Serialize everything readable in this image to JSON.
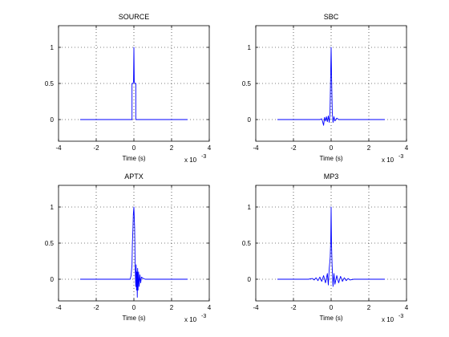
{
  "chart_data": [
    {
      "type": "line",
      "title": "SOURCE",
      "xlabel": "Time (s)",
      "ylabel": "",
      "x_multiplier_label": "x 10",
      "x_multiplier_exponent": "-3",
      "xlim": [
        -4,
        4
      ],
      "ylim": [
        -0.3,
        1.3
      ],
      "xticks": [
        "-4",
        "-2",
        "0",
        "2",
        "4"
      ],
      "yticks": [
        "0",
        "0.5",
        "1"
      ],
      "grid": true,
      "color": "#0000ff",
      "x": [
        -2.85,
        -0.12,
        -0.1,
        -0.1,
        -0.05,
        -0.02,
        0,
        0.02,
        0.05,
        0.1,
        0.1,
        0.12,
        2.85
      ],
      "y": [
        0,
        0,
        0,
        0.5,
        0.5,
        0.52,
        1.0,
        0.52,
        0.5,
        0.5,
        0,
        0,
        0
      ]
    },
    {
      "type": "line",
      "title": "SBC",
      "xlabel": "Time (s)",
      "ylabel": "",
      "x_multiplier_label": "x 10",
      "x_multiplier_exponent": "-3",
      "xlim": [
        -4,
        4
      ],
      "ylim": [
        -0.3,
        1.3
      ],
      "xticks": [
        "-4",
        "-2",
        "0",
        "2",
        "4"
      ],
      "yticks": [
        "0",
        "0.5",
        "1"
      ],
      "grid": true,
      "color": "#0000ff",
      "x": [
        -2.85,
        -0.6,
        -0.5,
        -0.45,
        -0.4,
        -0.35,
        -0.3,
        -0.25,
        -0.2,
        -0.15,
        -0.1,
        -0.06,
        -0.03,
        0,
        0.03,
        0.06,
        0.1,
        0.15,
        0.2,
        0.3,
        0.4,
        2.85
      ],
      "y": [
        0,
        0,
        0.01,
        -0.03,
        -0.08,
        0.03,
        -0.02,
        0.04,
        -0.03,
        0.05,
        -0.04,
        0.1,
        0.55,
        1.0,
        0.5,
        0.1,
        -0.04,
        0.04,
        -0.02,
        0.02,
        0,
        0
      ]
    },
    {
      "type": "line",
      "title": "APTX",
      "xlabel": "Time (s)",
      "ylabel": "",
      "x_multiplier_label": "x 10",
      "x_multiplier_exponent": "-3",
      "xlim": [
        -4,
        4
      ],
      "ylim": [
        -0.3,
        1.3
      ],
      "xticks": [
        "-4",
        "-2",
        "0",
        "2",
        "4"
      ],
      "yticks": [
        "0",
        "0.5",
        "1"
      ],
      "grid": true,
      "color": "#0000ff",
      "x": [
        -2.85,
        -0.2,
        -0.15,
        -0.1,
        -0.08,
        -0.05,
        -0.03,
        0,
        0.02,
        0.04,
        0.06,
        0.08,
        0.1,
        0.12,
        0.14,
        0.16,
        0.18,
        0.2,
        0.22,
        0.25,
        0.28,
        0.32,
        0.36,
        0.4,
        0.5,
        0.6,
        2.85
      ],
      "y": [
        0,
        0,
        0.05,
        0.2,
        0.5,
        0.7,
        0.9,
        1.0,
        0.85,
        0.7,
        0.3,
        0.05,
        -0.1,
        0.2,
        -0.15,
        0.1,
        -0.25,
        0.15,
        -0.15,
        0.1,
        -0.1,
        0.06,
        -0.05,
        0.03,
        0.01,
        0,
        0
      ]
    },
    {
      "type": "line",
      "title": "MP3",
      "xlabel": "Time (s)",
      "ylabel": "",
      "x_multiplier_label": "x 10",
      "x_multiplier_exponent": "-3",
      "xlim": [
        -4,
        4
      ],
      "ylim": [
        -0.3,
        1.3
      ],
      "xticks": [
        "-4",
        "-2",
        "0",
        "2",
        "4"
      ],
      "yticks": [
        "0",
        "0.5",
        "1"
      ],
      "grid": true,
      "color": "#0000ff",
      "x": [
        -2.85,
        -1.2,
        -1.0,
        -0.9,
        -0.8,
        -0.7,
        -0.6,
        -0.5,
        -0.4,
        -0.3,
        -0.2,
        -0.15,
        -0.1,
        -0.05,
        -0.02,
        0,
        0.02,
        0.05,
        0.1,
        0.15,
        0.2,
        0.3,
        0.4,
        0.5,
        0.6,
        0.7,
        0.8,
        0.9,
        1.0,
        1.2,
        2.85
      ],
      "y": [
        0,
        0,
        0.01,
        -0.01,
        0.02,
        -0.02,
        0.03,
        -0.03,
        0.05,
        -0.05,
        0.08,
        -0.08,
        0.15,
        0.3,
        0.55,
        1.0,
        0.5,
        0.2,
        -0.1,
        0.08,
        -0.07,
        0.05,
        -0.05,
        0.04,
        -0.03,
        0.02,
        -0.02,
        0.01,
        -0.01,
        0,
        0
      ]
    }
  ]
}
